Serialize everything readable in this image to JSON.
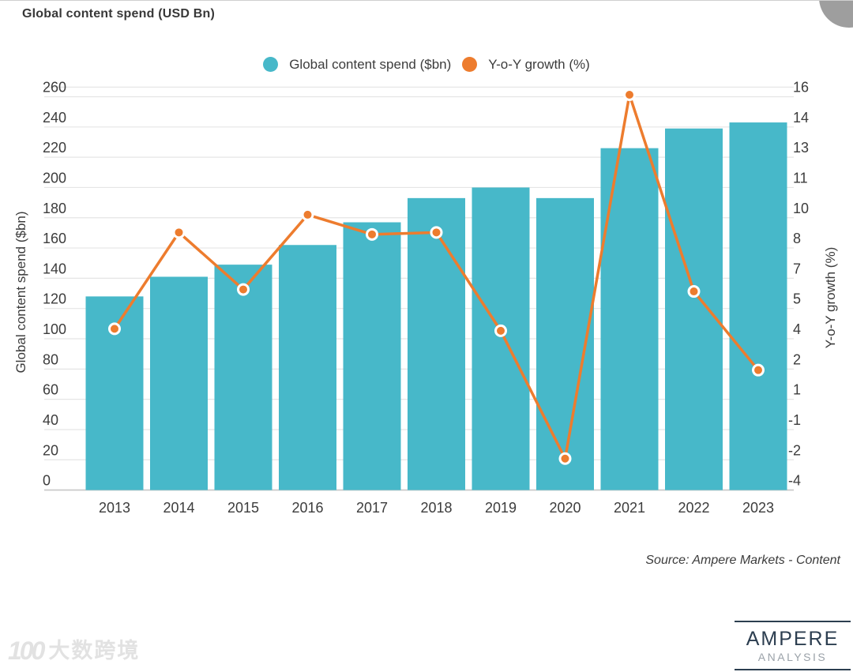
{
  "chart_data": {
    "type": "bar",
    "title": "Global content spend (USD Bn)",
    "categories": [
      "2013",
      "2014",
      "2015",
      "2016",
      "2017",
      "2018",
      "2019",
      "2020",
      "2021",
      "2022",
      "2023"
    ],
    "series": [
      {
        "name": "Global content spend ($bn)",
        "kind": "bar",
        "axis": "left",
        "color": "#47B8C9",
        "values": [
          128,
          141,
          149,
          162,
          177,
          193,
          200,
          193,
          226,
          239,
          243
        ]
      },
      {
        "name": "Y-o-Y growth (%)",
        "kind": "line",
        "axis": "right",
        "color": "#ED7C2E",
        "marker_stroke": "#FFFFFF",
        "values": [
          4.2,
          9.1,
          6.2,
          10.0,
          9.0,
          9.1,
          4.1,
          -2.4,
          16.1,
          6.1,
          2.1
        ]
      }
    ],
    "left_axis": {
      "title": "Global content spend ($bn)",
      "min": 0,
      "max": 260,
      "tick_step": 20
    },
    "right_axis": {
      "title": "Y-o-Y growth (%)",
      "min": -4,
      "max": 16,
      "tick_labels_top_to_bottom": [
        "16",
        "14",
        "13",
        "11",
        "10",
        "8",
        "7",
        "5",
        "4",
        "2",
        "1",
        "-1",
        "-2",
        "-4"
      ]
    },
    "legend_position": "top",
    "grid": true
  },
  "source": {
    "text": "Source: Ampere Markets - Content"
  },
  "logo": {
    "line1": "AMPERE",
    "line2": "ANALYSIS"
  },
  "watermark": {
    "icon_text": "100",
    "text": "大数跨境"
  },
  "decor": {
    "corner_circle_color": "#9E9E9E",
    "grid_color": "#E5E5E5",
    "axis_line_color": "#C6C6C6",
    "ink_color": "#3C3C3C"
  }
}
